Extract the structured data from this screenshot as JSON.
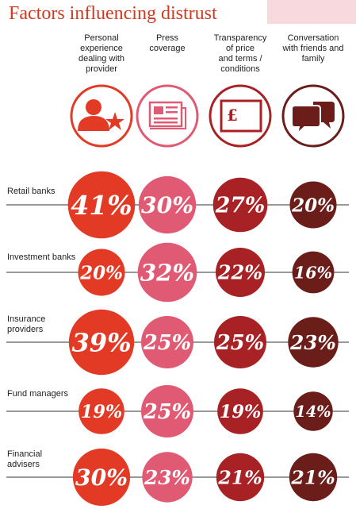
{
  "title": "Factors influencing distrust",
  "colors": {
    "accent": "#d23a1f",
    "corner_bg": "#f7d9de",
    "columns": [
      "#e23a24",
      "#e05a74",
      "#a82125",
      "#6b1d1a"
    ]
  },
  "chart_data": {
    "type": "table",
    "title": "Factors influencing distrust",
    "columns": [
      {
        "label": "Personal\nexperience\ndealing with\nprovider",
        "icon": "person-star-icon"
      },
      {
        "label": "Press\ncoverage",
        "icon": "newspaper-icon"
      },
      {
        "label": "Transparency\nof price\nand terms /\nconditions",
        "icon": "pound-sign-icon"
      },
      {
        "label": "Conversation\nwith friends and\nfamily",
        "icon": "speech-bubbles-icon"
      }
    ],
    "rows": [
      {
        "label": "Retail banks",
        "values": [
          "41%",
          "30%",
          "27%",
          "20%"
        ]
      },
      {
        "label": "Investment banks",
        "values": [
          "20%",
          "32%",
          "22%",
          "16%"
        ]
      },
      {
        "label": "Insurance\nproviders",
        "values": [
          "39%",
          "25%",
          "25%",
          "23%"
        ]
      },
      {
        "label": "Fund managers",
        "values": [
          "19%",
          "25%",
          "19%",
          "14%"
        ]
      },
      {
        "label": "Financial\nadvisers",
        "values": [
          "30%",
          "23%",
          "21%",
          "21%"
        ]
      }
    ]
  }
}
